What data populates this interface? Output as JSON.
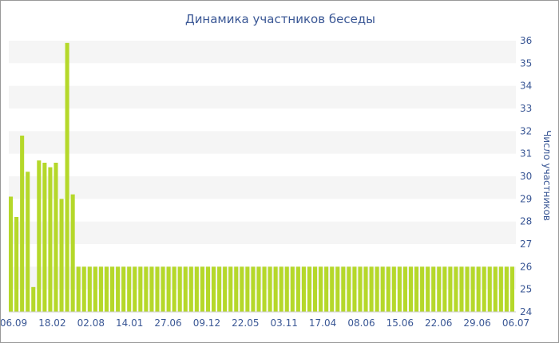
{
  "chart_data": {
    "type": "bar",
    "title": "Динамика участников беседы",
    "ylabel": "Число участников",
    "xlabel": "",
    "ylim": [
      24,
      36
    ],
    "y_ticks": [
      "24",
      "25",
      "26",
      "27",
      "28",
      "29",
      "30",
      "31",
      "32",
      "33",
      "34",
      "35",
      "36"
    ],
    "x_tick_labels": [
      "06.09",
      "18.02",
      "02.08",
      "14.01",
      "27.06",
      "09.12",
      "22.05",
      "03.11",
      "17.04",
      "08.06",
      "15.06",
      "22.06",
      "29.06",
      "06.07"
    ],
    "grid": "horizontal alternating bands",
    "y_axis_side": "right",
    "colors": {
      "bar": "#b5d82a",
      "text": "#3a5795",
      "band": "#f5f5f5"
    },
    "values": [
      29.1,
      28.2,
      31.8,
      30.2,
      25.1,
      30.7,
      30.6,
      30.4,
      30.6,
      29.0,
      35.9,
      29.2,
      26,
      26,
      26,
      26,
      26,
      26,
      26,
      26,
      26,
      26,
      26,
      26,
      26,
      26,
      26,
      26,
      26,
      26,
      26,
      26,
      26,
      26,
      26,
      26,
      26,
      26,
      26,
      26,
      26,
      26,
      26,
      26,
      26,
      26,
      26,
      26,
      26,
      26,
      26,
      26,
      26,
      26,
      26,
      26,
      26,
      26,
      26,
      26,
      26,
      26,
      26,
      26,
      26,
      26,
      26,
      26,
      26,
      26,
      26,
      26,
      26,
      26,
      26,
      26,
      26,
      26,
      26,
      26,
      26,
      26,
      26,
      26,
      26,
      26,
      26,
      26,
      26,
      26
    ]
  }
}
